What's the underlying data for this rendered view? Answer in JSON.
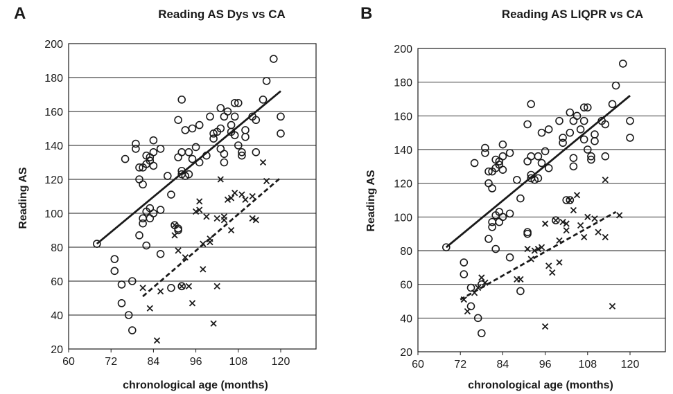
{
  "chart_data": [
    {
      "type": "scatter",
      "panel_label": "A",
      "title": "Reading AS Dys vs CA",
      "xlabel": "chronological age (months)",
      "ylabel": "Reading AS",
      "xlim": [
        60,
        130
      ],
      "ylim": [
        20,
        200
      ],
      "xticks": [
        "60",
        "72",
        "84",
        "96",
        "108",
        "120"
      ],
      "yticks": [
        "20",
        "40",
        "60",
        "80",
        "100",
        "120",
        "140",
        "160",
        "180",
        "200"
      ],
      "grid": "horizontal",
      "series": [
        {
          "marker": "circle",
          "points": [
            [
              68,
              82
            ],
            [
              73,
              73
            ],
            [
              73,
              66
            ],
            [
              75,
              58
            ],
            [
              75,
              47
            ],
            [
              76,
              132
            ],
            [
              77,
              40
            ],
            [
              78,
              60
            ],
            [
              78,
              31
            ],
            [
              79,
              141
            ],
            [
              79,
              138
            ],
            [
              80,
              127
            ],
            [
              80,
              120
            ],
            [
              80,
              87
            ],
            [
              81,
              127
            ],
            [
              81,
              117
            ],
            [
              81,
              94
            ],
            [
              81,
              97
            ],
            [
              82,
              134
            ],
            [
              82,
              129
            ],
            [
              82,
              101
            ],
            [
              82,
              81
            ],
            [
              83,
              133
            ],
            [
              83,
              131
            ],
            [
              83,
              103
            ],
            [
              83,
              97
            ],
            [
              84,
              143
            ],
            [
              84,
              136
            ],
            [
              84,
              128
            ],
            [
              84,
              100
            ],
            [
              86,
              138
            ],
            [
              86,
              102
            ],
            [
              86,
              76
            ],
            [
              88,
              122
            ],
            [
              89,
              111
            ],
            [
              89,
              56
            ],
            [
              90,
              93
            ],
            [
              91,
              155
            ],
            [
              91,
              133
            ],
            [
              91,
              91
            ],
            [
              91,
              90
            ],
            [
              92,
              167
            ],
            [
              92,
              125
            ],
            [
              92,
              123
            ],
            [
              92,
              136
            ],
            [
              92,
              57
            ],
            [
              93,
              149
            ],
            [
              93,
              122
            ],
            [
              94,
              136
            ],
            [
              94,
              123
            ],
            [
              95,
              150
            ],
            [
              95,
              132
            ],
            [
              96,
              139
            ],
            [
              97,
              152
            ],
            [
              97,
              130
            ],
            [
              99,
              134
            ],
            [
              100,
              157
            ],
            [
              101,
              147
            ],
            [
              101,
              144
            ],
            [
              102,
              148
            ],
            [
              103,
              162
            ],
            [
              103,
              150
            ],
            [
              103,
              138
            ],
            [
              104,
              157
            ],
            [
              104,
              135
            ],
            [
              104,
              130
            ],
            [
              105,
              160
            ],
            [
              106,
              152
            ],
            [
              106,
              148
            ],
            [
              107,
              165
            ],
            [
              107,
              157
            ],
            [
              107,
              146
            ],
            [
              108,
              165
            ],
            [
              108,
              140
            ],
            [
              109,
              136
            ],
            [
              109,
              134
            ],
            [
              110,
              149
            ],
            [
              110,
              145
            ],
            [
              112,
              157
            ],
            [
              113,
              155
            ],
            [
              113,
              136
            ],
            [
              115,
              167
            ],
            [
              116,
              178
            ],
            [
              118,
              191
            ],
            [
              120,
              157
            ],
            [
              120,
              147
            ]
          ]
        },
        {
          "marker": "x",
          "points": [
            [
              81,
              56
            ],
            [
              83,
              44
            ],
            [
              85,
              25
            ],
            [
              86,
              54
            ],
            [
              90,
              93
            ],
            [
              90,
              87
            ],
            [
              91,
              78
            ],
            [
              92,
              57
            ],
            [
              93,
              74
            ],
            [
              94,
              57
            ],
            [
              95,
              47
            ],
            [
              96,
              101
            ],
            [
              97,
              107
            ],
            [
              97,
              102
            ],
            [
              98,
              67
            ],
            [
              98,
              82
            ],
            [
              99,
              98
            ],
            [
              100,
              85
            ],
            [
              100,
              83
            ],
            [
              101,
              35
            ],
            [
              102,
              97
            ],
            [
              102,
              57
            ],
            [
              103,
              120
            ],
            [
              104,
              98
            ],
            [
              104,
              96
            ],
            [
              105,
              108
            ],
            [
              106,
              109
            ],
            [
              106,
              90
            ],
            [
              107,
              112
            ],
            [
              109,
              111
            ],
            [
              110,
              108
            ],
            [
              112,
              110
            ],
            [
              112,
              97
            ],
            [
              113,
              96
            ],
            [
              115,
              130
            ],
            [
              116,
              119
            ]
          ]
        }
      ],
      "trendlines": [
        {
          "style": "solid",
          "x": [
            68,
            120
          ],
          "y": [
            82,
            172
          ]
        },
        {
          "style": "dashed",
          "x": [
            81,
            120
          ],
          "y": [
            51,
            121
          ]
        }
      ]
    },
    {
      "type": "scatter",
      "panel_label": "B",
      "title": "Reading AS LIQPR vs CA",
      "xlabel": "chronological age (months)",
      "ylabel": "Reading AS",
      "xlim": [
        60,
        130
      ],
      "ylim": [
        20,
        200
      ],
      "xticks": [
        "60",
        "72",
        "84",
        "96",
        "108",
        "120"
      ],
      "yticks": [
        "20",
        "40",
        "60",
        "80",
        "100",
        "120",
        "140",
        "160",
        "180",
        "200"
      ],
      "grid": "horizontal",
      "series": [
        {
          "marker": "circle",
          "points": [
            [
              68,
              82
            ],
            [
              73,
              73
            ],
            [
              73,
              66
            ],
            [
              75,
              58
            ],
            [
              75,
              47
            ],
            [
              76,
              132
            ],
            [
              77,
              40
            ],
            [
              78,
              60
            ],
            [
              78,
              31
            ],
            [
              79,
              141
            ],
            [
              79,
              138
            ],
            [
              80,
              127
            ],
            [
              80,
              120
            ],
            [
              80,
              87
            ],
            [
              81,
              127
            ],
            [
              81,
              117
            ],
            [
              81,
              94
            ],
            [
              81,
              97
            ],
            [
              82,
              134
            ],
            [
              82,
              129
            ],
            [
              82,
              101
            ],
            [
              82,
              81
            ],
            [
              83,
              133
            ],
            [
              83,
              131
            ],
            [
              83,
              103
            ],
            [
              83,
              97
            ],
            [
              84,
              143
            ],
            [
              84,
              136
            ],
            [
              84,
              128
            ],
            [
              84,
              100
            ],
            [
              86,
              138
            ],
            [
              86,
              102
            ],
            [
              86,
              76
            ],
            [
              88,
              122
            ],
            [
              89,
              111
            ],
            [
              89,
              56
            ],
            [
              91,
              155
            ],
            [
              91,
              133
            ],
            [
              91,
              91
            ],
            [
              91,
              90
            ],
            [
              92,
              167
            ],
            [
              92,
              125
            ],
            [
              92,
              123
            ],
            [
              92,
              136
            ],
            [
              93,
              122
            ],
            [
              94,
              136
            ],
            [
              94,
              123
            ],
            [
              95,
              150
            ],
            [
              95,
              132
            ],
            [
              96,
              139
            ],
            [
              97,
              152
            ],
            [
              97,
              129
            ],
            [
              99,
              98
            ],
            [
              100,
              157
            ],
            [
              101,
              147
            ],
            [
              101,
              144
            ],
            [
              102,
              110
            ],
            [
              103,
              162
            ],
            [
              103,
              150
            ],
            [
              103,
              110
            ],
            [
              104,
              157
            ],
            [
              104,
              135
            ],
            [
              104,
              130
            ],
            [
              105,
              160
            ],
            [
              106,
              152
            ],
            [
              107,
              165
            ],
            [
              107,
              157
            ],
            [
              107,
              146
            ],
            [
              108,
              165
            ],
            [
              108,
              140
            ],
            [
              109,
              136
            ],
            [
              109,
              134
            ],
            [
              110,
              149
            ],
            [
              110,
              145
            ],
            [
              112,
              157
            ],
            [
              113,
              155
            ],
            [
              113,
              136
            ],
            [
              115,
              167
            ],
            [
              116,
              178
            ],
            [
              118,
              191
            ],
            [
              120,
              157
            ],
            [
              120,
              147
            ]
          ]
        },
        {
          "marker": "x",
          "points": [
            [
              73,
              51
            ],
            [
              74,
              44
            ],
            [
              76,
              55
            ],
            [
              77,
              58
            ],
            [
              78,
              64
            ],
            [
              79,
              61
            ],
            [
              88,
              63
            ],
            [
              89,
              63
            ],
            [
              91,
              81
            ],
            [
              92,
              75
            ],
            [
              93,
              80
            ],
            [
              94,
              81
            ],
            [
              95,
              82
            ],
            [
              96,
              96
            ],
            [
              96,
              35
            ],
            [
              97,
              71
            ],
            [
              98,
              67
            ],
            [
              99,
              98
            ],
            [
              100,
              73
            ],
            [
              100,
              86
            ],
            [
              101,
              97
            ],
            [
              102,
              96
            ],
            [
              102,
              92
            ],
            [
              103,
              110
            ],
            [
              104,
              104
            ],
            [
              105,
              113
            ],
            [
              106,
              95
            ],
            [
              107,
              88
            ],
            [
              108,
              100
            ],
            [
              110,
              99
            ],
            [
              111,
              91
            ],
            [
              113,
              122
            ],
            [
              113,
              88
            ],
            [
              115,
              47
            ],
            [
              117,
              101
            ]
          ]
        }
      ],
      "trendlines": [
        {
          "style": "solid",
          "x": [
            68,
            120
          ],
          "y": [
            82,
            172
          ]
        },
        {
          "style": "dashed",
          "x": [
            72,
            116
          ],
          "y": [
            51,
            103
          ]
        }
      ]
    }
  ]
}
